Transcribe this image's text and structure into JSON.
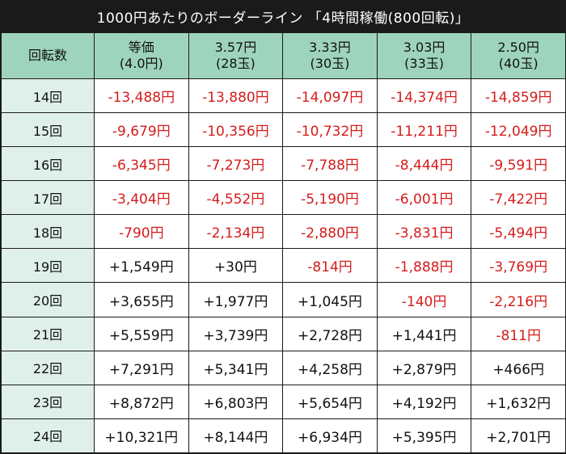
{
  "title": "1000円あたりのボーダーライン 「4時間稼働(800回転)」",
  "colors": {
    "background": "#1a1a1a",
    "header_bg": "#9ed4bd",
    "rowhead_bg": "#dff0ea",
    "negative": "#d61c1c",
    "positive": "#111111"
  },
  "table": {
    "corner": "回転数",
    "columns": [
      {
        "line1": "等価",
        "line2": "(4.0円)"
      },
      {
        "line1": "3.57円",
        "line2": "(28玉)"
      },
      {
        "line1": "3.33円",
        "line2": "(30玉)"
      },
      {
        "line1": "3.03円",
        "line2": "(33玉)"
      },
      {
        "line1": "2.50円",
        "line2": "(40玉)"
      }
    ],
    "rows": [
      {
        "label": "14回",
        "cells": [
          "-13,488円",
          "-13,880円",
          "-14,097円",
          "-14,374円",
          "-14,859円"
        ]
      },
      {
        "label": "15回",
        "cells": [
          "-9,679円",
          "-10,356円",
          "-10,732円",
          "-11,211円",
          "-12,049円"
        ]
      },
      {
        "label": "16回",
        "cells": [
          "-6,345円",
          "-7,273円",
          "-7,788円",
          "-8,444円",
          "-9,591円"
        ]
      },
      {
        "label": "17回",
        "cells": [
          "-3,404円",
          "-4,552円",
          "-5,190円",
          "-6,001円",
          "-7,422円"
        ]
      },
      {
        "label": "18回",
        "cells": [
          "-790円",
          "-2,134円",
          "-2,880円",
          "-3,831円",
          "-5,494円"
        ]
      },
      {
        "label": "19回",
        "cells": [
          "+1,549円",
          "+30円",
          "-814円",
          "-1,888円",
          "-3,769円"
        ]
      },
      {
        "label": "20回",
        "cells": [
          "+3,655円",
          "+1,977円",
          "+1,045円",
          "-140円",
          "-2,216円"
        ]
      },
      {
        "label": "21回",
        "cells": [
          "+5,559円",
          "+3,739円",
          "+2,728円",
          "+1,441円",
          "-811円"
        ]
      },
      {
        "label": "22回",
        "cells": [
          "+7,291円",
          "+5,341円",
          "+4,258円",
          "+2,879円",
          "+466円"
        ]
      },
      {
        "label": "23回",
        "cells": [
          "+8,872円",
          "+6,803円",
          "+5,654円",
          "+4,192円",
          "+1,632円"
        ]
      },
      {
        "label": "24回",
        "cells": [
          "+10,321円",
          "+8,144円",
          "+6,934円",
          "+5,395円",
          "+2,701円"
        ]
      }
    ]
  }
}
